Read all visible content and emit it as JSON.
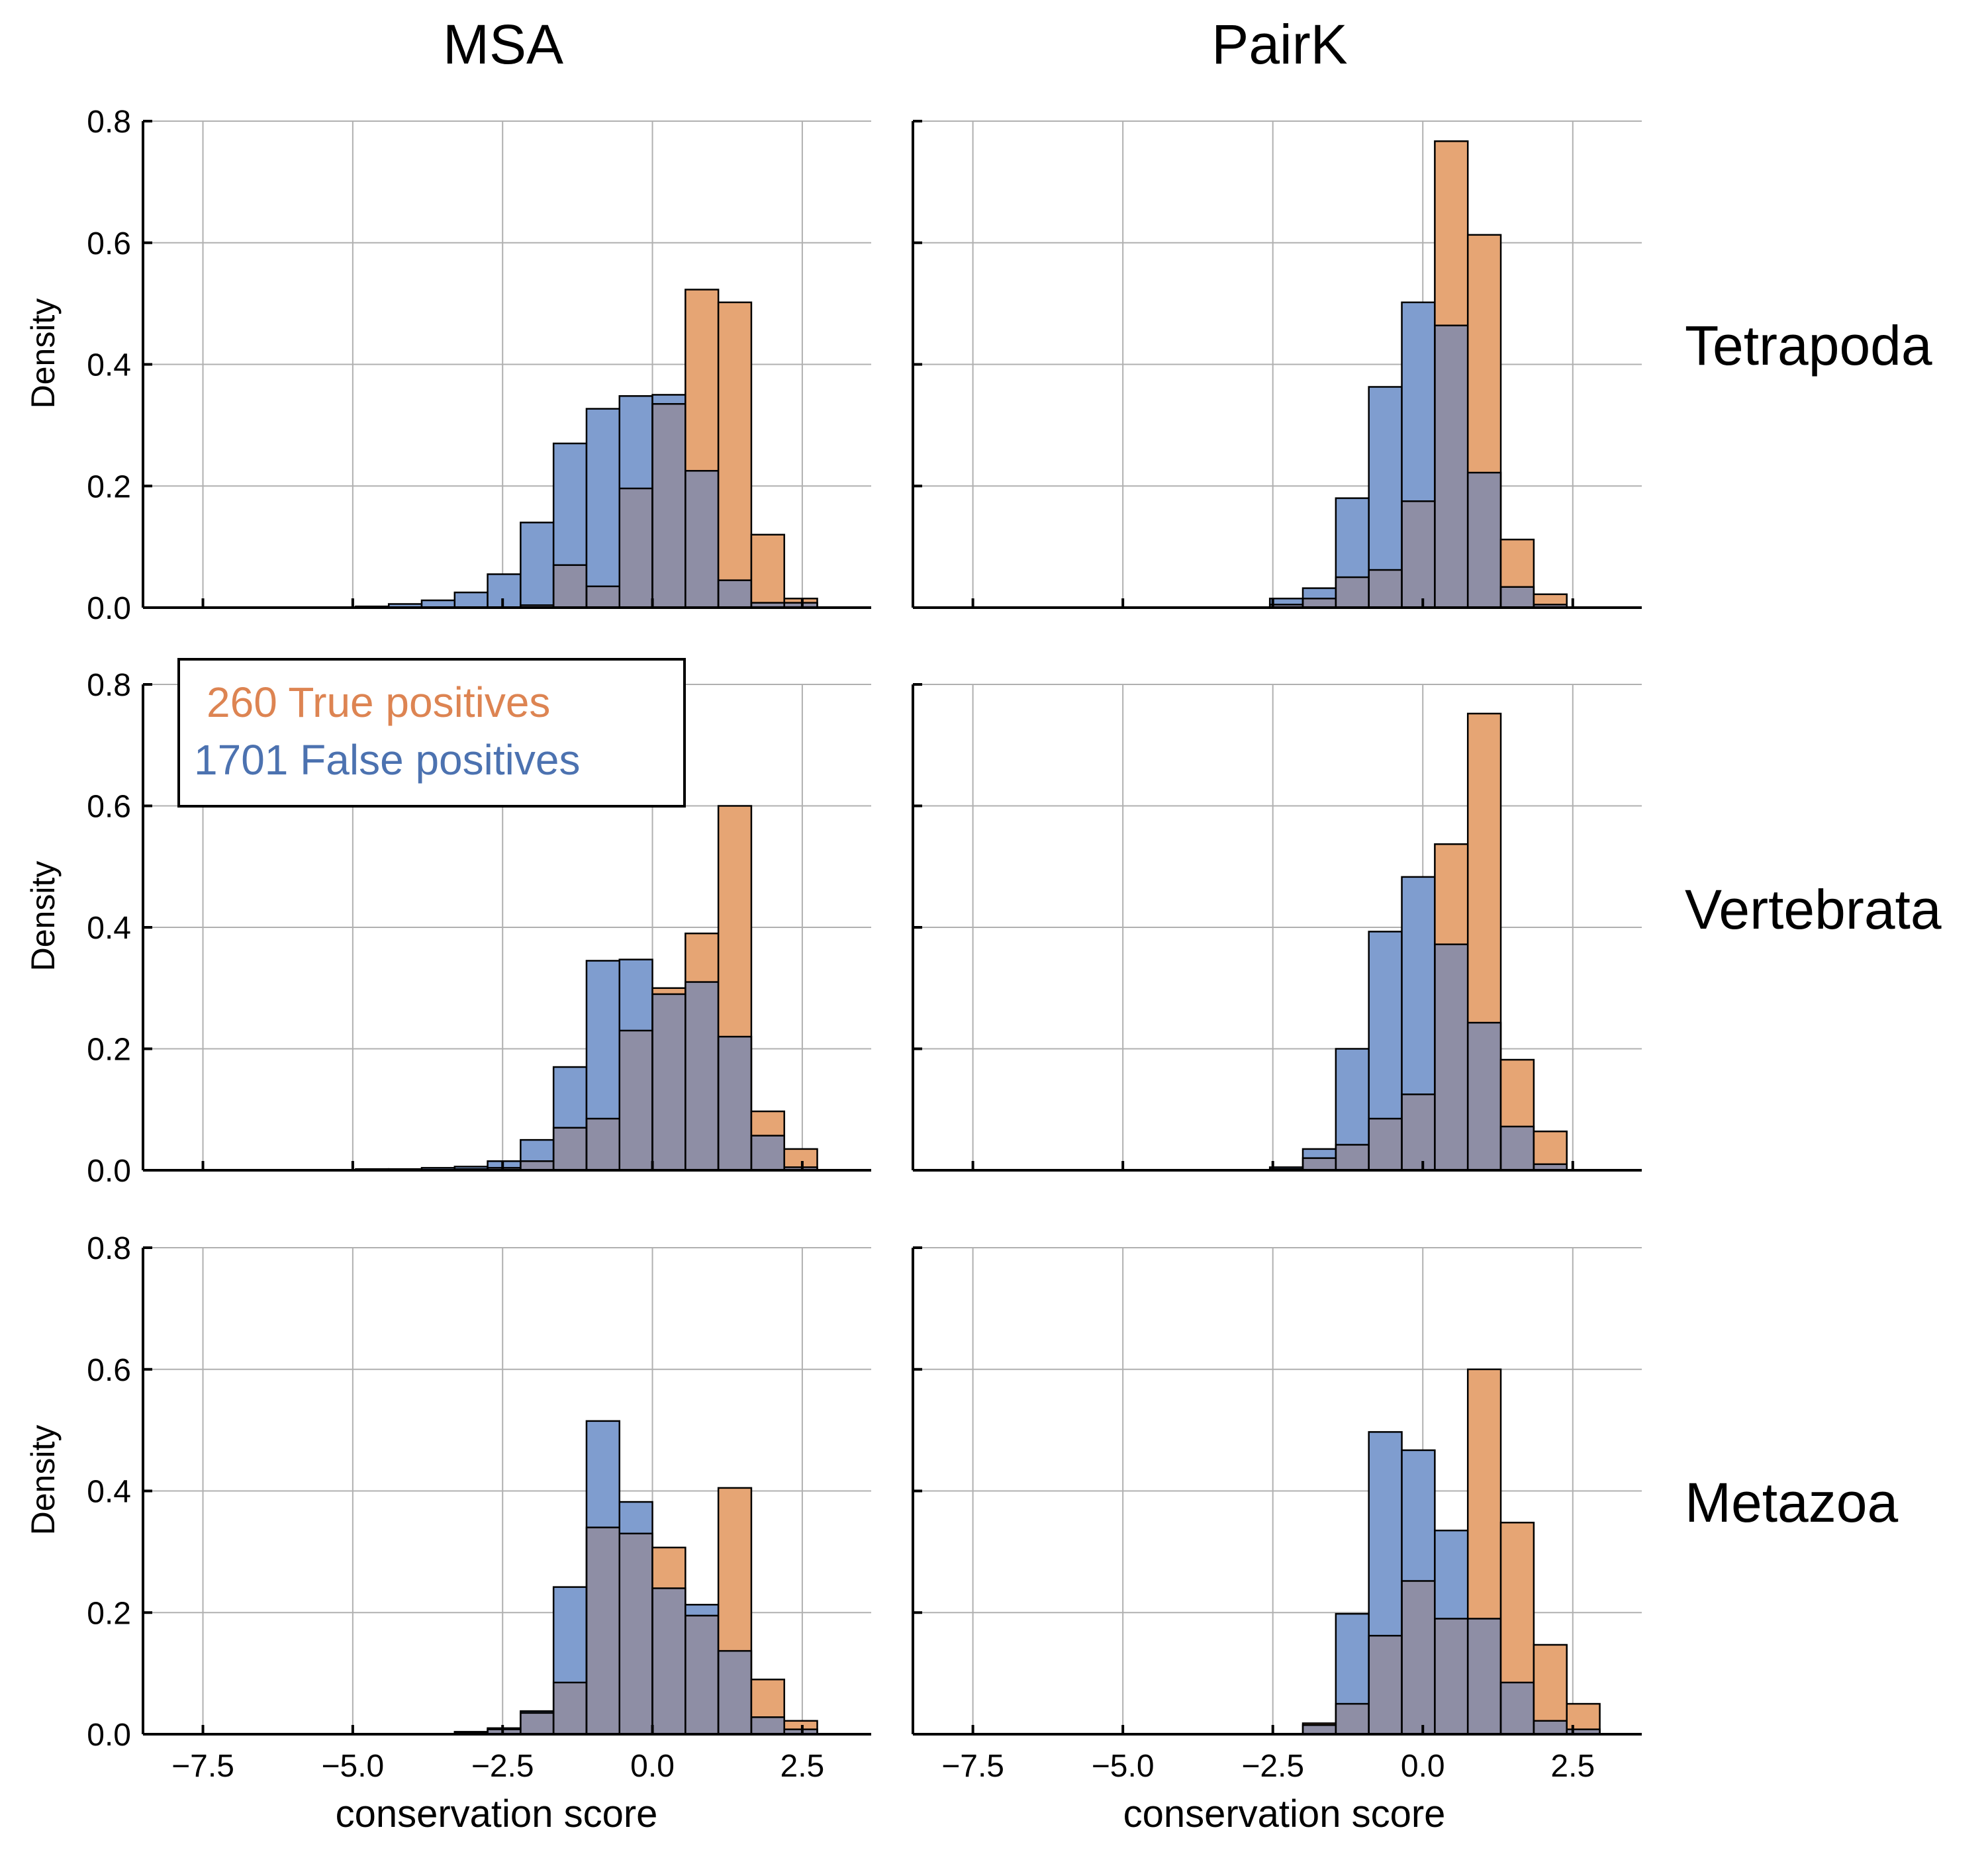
{
  "figure": {
    "columns": [
      "MSA",
      "PairK"
    ],
    "rows": [
      "Tetrapoda",
      "Vertebrata",
      "Metazoa"
    ],
    "ylabel": "Density",
    "xlabel": "conservation score",
    "xticks": [
      "−7.5",
      "−5.0",
      "−2.5",
      "0.0",
      "2.5"
    ],
    "yticks": [
      "0.0",
      "0.2",
      "0.4",
      "0.6",
      "0.8"
    ],
    "legend": {
      "true_label": "260 True positives",
      "false_label": "1701 False positives"
    }
  },
  "colors": {
    "true_positive": "#e6a574",
    "false_positive": "#7f9dcf",
    "overlap": "#8e8ea5",
    "true_text": "#dd8452",
    "false_text": "#4c72b0"
  },
  "chart_data": [
    {
      "type": "histogram",
      "column": "MSA",
      "row": "Tetrapoda",
      "xlim": [
        -8.5,
        3.65
      ],
      "ylim": [
        0,
        0.8
      ],
      "bin_edges": [
        -4.95,
        -4.4,
        -3.85,
        -3.3,
        -2.75,
        -2.2,
        -1.65,
        -1.1,
        -0.55,
        0.0,
        0.55,
        1.1,
        1.65,
        2.2,
        2.75
      ],
      "true_positives": [
        0,
        0,
        0,
        0,
        0,
        0.004,
        0.07,
        0.035,
        0.196,
        0.335,
        0.523,
        0.502,
        0.12,
        0.015
      ],
      "false_positives": [
        0.002,
        0.006,
        0.012,
        0.025,
        0.055,
        0.14,
        0.27,
        0.327,
        0.348,
        0.35,
        0.225,
        0.045,
        0.008,
        0.008
      ]
    },
    {
      "type": "histogram",
      "column": "PairK",
      "row": "Tetrapoda",
      "xlim": [
        -8.5,
        3.65
      ],
      "ylim": [
        0,
        0.8
      ],
      "bin_edges": [
        -2.55,
        -2.0,
        -1.45,
        -0.9,
        -0.35,
        0.2,
        0.75,
        1.3,
        1.85,
        2.4
      ],
      "true_positives": [
        0.005,
        0.015,
        0.05,
        0.062,
        0.175,
        0.767,
        0.613,
        0.112,
        0.022
      ],
      "false_positives": [
        0.015,
        0.032,
        0.18,
        0.363,
        0.502,
        0.464,
        0.222,
        0.034,
        0.005
      ]
    },
    {
      "type": "histogram",
      "column": "MSA",
      "row": "Vertebrata",
      "xlim": [
        -8.5,
        3.65
      ],
      "ylim": [
        0,
        0.8
      ],
      "bin_edges": [
        -4.95,
        -4.4,
        -3.85,
        -3.3,
        -2.75,
        -2.2,
        -1.65,
        -1.1,
        -0.55,
        0.0,
        0.55,
        1.1,
        1.65,
        2.2,
        2.75
      ],
      "true_positives": [
        0,
        0,
        0,
        0.002,
        0.004,
        0.015,
        0.07,
        0.085,
        0.23,
        0.3,
        0.39,
        0.6,
        0.097,
        0.035
      ],
      "false_positives": [
        0.002,
        0.002,
        0.004,
        0.006,
        0.015,
        0.05,
        0.17,
        0.345,
        0.347,
        0.29,
        0.31,
        0.22,
        0.057,
        0.005
      ]
    },
    {
      "type": "histogram",
      "column": "PairK",
      "row": "Vertebrata",
      "xlim": [
        -8.5,
        3.65
      ],
      "ylim": [
        0,
        0.8
      ],
      "bin_edges": [
        -2.55,
        -2.0,
        -1.45,
        -0.9,
        -0.35,
        0.2,
        0.75,
        1.3,
        1.85,
        2.4
      ],
      "true_positives": [
        0.002,
        0.02,
        0.042,
        0.085,
        0.125,
        0.537,
        0.752,
        0.182,
        0.064
      ],
      "false_positives": [
        0.005,
        0.035,
        0.2,
        0.393,
        0.483,
        0.372,
        0.243,
        0.072,
        0.01
      ]
    },
    {
      "type": "histogram",
      "column": "MSA",
      "row": "Metazoa",
      "xlim": [
        -8.5,
        3.65
      ],
      "ylim": [
        0,
        0.8
      ],
      "bin_edges": [
        -3.3,
        -2.75,
        -2.2,
        -1.65,
        -1.1,
        -0.55,
        0.0,
        0.55,
        1.1,
        1.65,
        2.2,
        2.75
      ],
      "true_positives": [
        0.002,
        0.008,
        0.035,
        0.085,
        0.34,
        0.33,
        0.307,
        0.195,
        0.405,
        0.09,
        0.022
      ],
      "false_positives": [
        0.004,
        0.01,
        0.038,
        0.242,
        0.515,
        0.382,
        0.24,
        0.213,
        0.137,
        0.028,
        0.008
      ]
    },
    {
      "type": "histogram",
      "column": "PairK",
      "row": "Metazoa",
      "xlim": [
        -8.5,
        3.65
      ],
      "ylim": [
        0,
        0.8
      ],
      "bin_edges": [
        -2.0,
        -1.45,
        -0.9,
        -0.35,
        0.2,
        0.75,
        1.3,
        1.85,
        2.4,
        2.95
      ],
      "true_positives": [
        0.018,
        0.05,
        0.162,
        0.252,
        0.19,
        0.6,
        0.348,
        0.147,
        0.05
      ],
      "false_positives": [
        0.015,
        0.198,
        0.497,
        0.467,
        0.335,
        0.19,
        0.085,
        0.022,
        0.008
      ]
    }
  ]
}
